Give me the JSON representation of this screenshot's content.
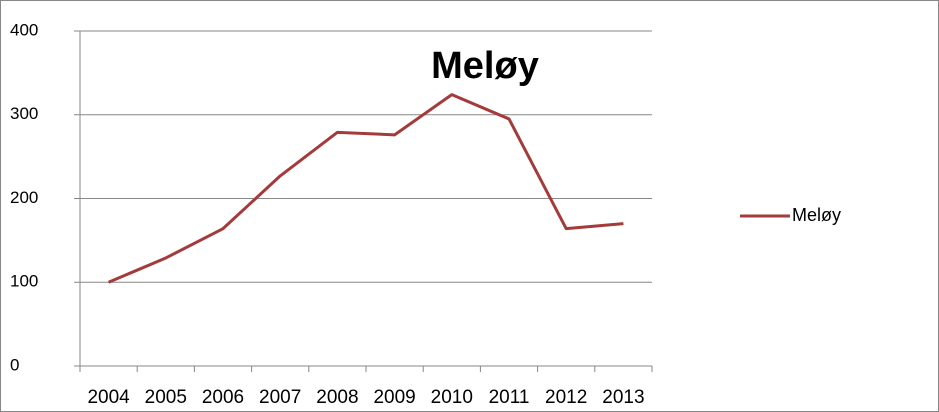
{
  "chart_data": {
    "type": "line",
    "title": "Meløy",
    "categories": [
      "2004",
      "2005",
      "2006",
      "2007",
      "2008",
      "2009",
      "2010",
      "2011",
      "2012",
      "2013"
    ],
    "series": [
      {
        "name": "Meløy",
        "color": "#a33b3b",
        "values": [
          100,
          129,
          164,
          227,
          279,
          276,
          324,
          295,
          164,
          170
        ]
      }
    ],
    "ylim": [
      0,
      400
    ],
    "yticks": [
      0,
      100,
      200,
      300,
      400
    ],
    "grid": true,
    "legend": "right"
  }
}
